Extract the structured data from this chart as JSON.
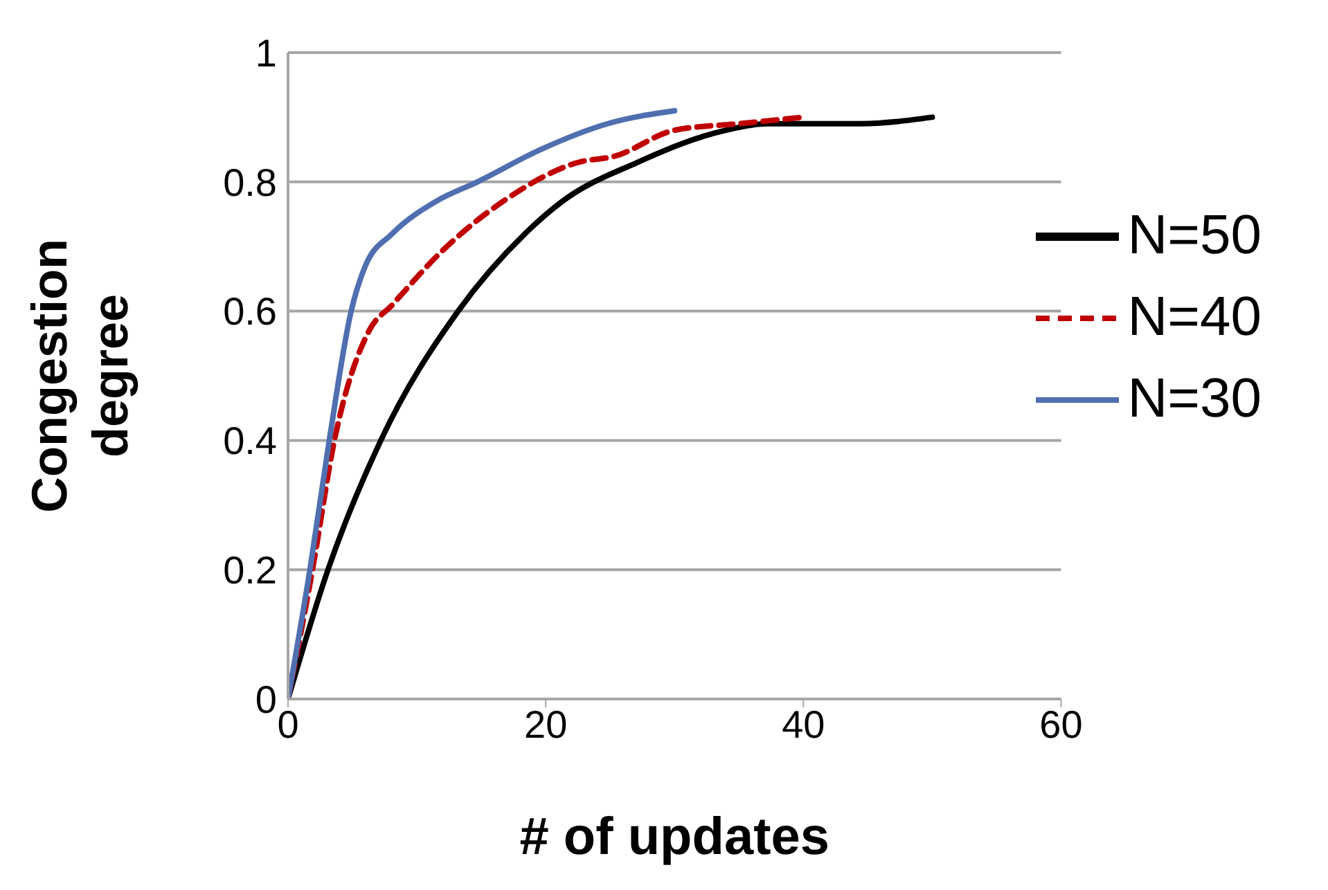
{
  "chart_data": {
    "type": "line",
    "xlabel": "# of updates",
    "ylabel": "Congestion degree",
    "xlim": [
      0,
      60
    ],
    "xticks": [
      0,
      20,
      40,
      60
    ],
    "ylim": [
      0,
      1
    ],
    "yticks": [
      0,
      0.2,
      0.4,
      0.6,
      0.8,
      1
    ],
    "grid": "y",
    "legend": "right",
    "marker": "none",
    "series": [
      {
        "name": "N=50",
        "color": "#000000",
        "line_style": "solid",
        "x": [
          0,
          3.1,
          7.2,
          13.2,
          18.4,
          21.3,
          27.1,
          34,
          37.2,
          44.4,
          50
        ],
        "values": [
          0,
          0.2,
          0.4,
          0.6,
          0.72,
          0.77,
          0.83,
          0.88,
          0.89,
          0.89,
          0.9
        ]
      },
      {
        "name": "N=40",
        "color": "#c00000",
        "line_style": "dashed",
        "x": [
          0,
          1.9,
          3.6,
          6.3,
          8.1,
          11.8,
          16.7,
          22.5,
          25.4,
          30,
          35,
          40
        ],
        "values": [
          0,
          0.2,
          0.4,
          0.57,
          0.61,
          0.69,
          0.77,
          0.83,
          0.84,
          0.88,
          0.89,
          0.9
        ]
      },
      {
        "name": "N=30",
        "color": "#4f6fb0",
        "line_style": "solid",
        "x": [
          0,
          1.7,
          3.2,
          4.9,
          6,
          8.1,
          11.5,
          14.7,
          19.6,
          24.8,
          30
        ],
        "values": [
          0,
          0.2,
          0.4,
          0.6,
          0.67,
          0.72,
          0.77,
          0.8,
          0.85,
          0.89,
          0.91
        ]
      }
    ]
  }
}
